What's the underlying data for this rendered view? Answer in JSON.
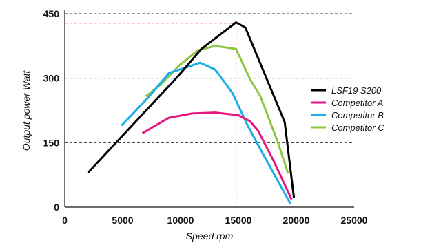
{
  "chart_data": {
    "type": "line",
    "xlabel": "Speed rpm",
    "ylabel": "Output power Watt",
    "xlim": [
      0,
      25000
    ],
    "ylim": [
      0,
      450
    ],
    "x_ticks": [
      "0",
      "5000",
      "10000",
      "15000",
      "20000",
      "25000"
    ],
    "y_ticks": [
      "0",
      "150",
      "300",
      "450"
    ],
    "grid": "horizontal dashed at 150, 300, 450",
    "legend_position": "right",
    "annotations": {
      "peak_marker": {
        "x": 14800,
        "y": 428,
        "color": "#e8384f",
        "style": "dashed"
      }
    },
    "series": [
      {
        "name": "LSF19 S200",
        "color": "#000000",
        "x": [
          2000,
          9800,
          11800,
          14800,
          15600,
          19000,
          19800
        ],
        "y": [
          80,
          305,
          368,
          430,
          418,
          198,
          22
        ]
      },
      {
        "name": "Competitor A",
        "color": "#e6157b",
        "x": [
          6700,
          9000,
          11000,
          13000,
          15000,
          16000,
          16700,
          18000,
          19600
        ],
        "y": [
          172,
          208,
          218,
          220,
          214,
          200,
          178,
          110,
          18
        ]
      },
      {
        "name": "Competitor B",
        "color": "#1bade8",
        "x": [
          4900,
          7200,
          9000,
          11700,
          13000,
          14500,
          15800,
          17200,
          19500
        ],
        "y": [
          190,
          255,
          312,
          336,
          320,
          265,
          190,
          120,
          8
        ]
      },
      {
        "name": "Competitor C",
        "color": "#8cc63f",
        "x": [
          7000,
          8300,
          9900,
          11500,
          13000,
          14800,
          16000,
          16900,
          18400,
          19300
        ],
        "y": [
          258,
          285,
          330,
          365,
          375,
          368,
          298,
          258,
          152,
          78
        ]
      }
    ]
  }
}
